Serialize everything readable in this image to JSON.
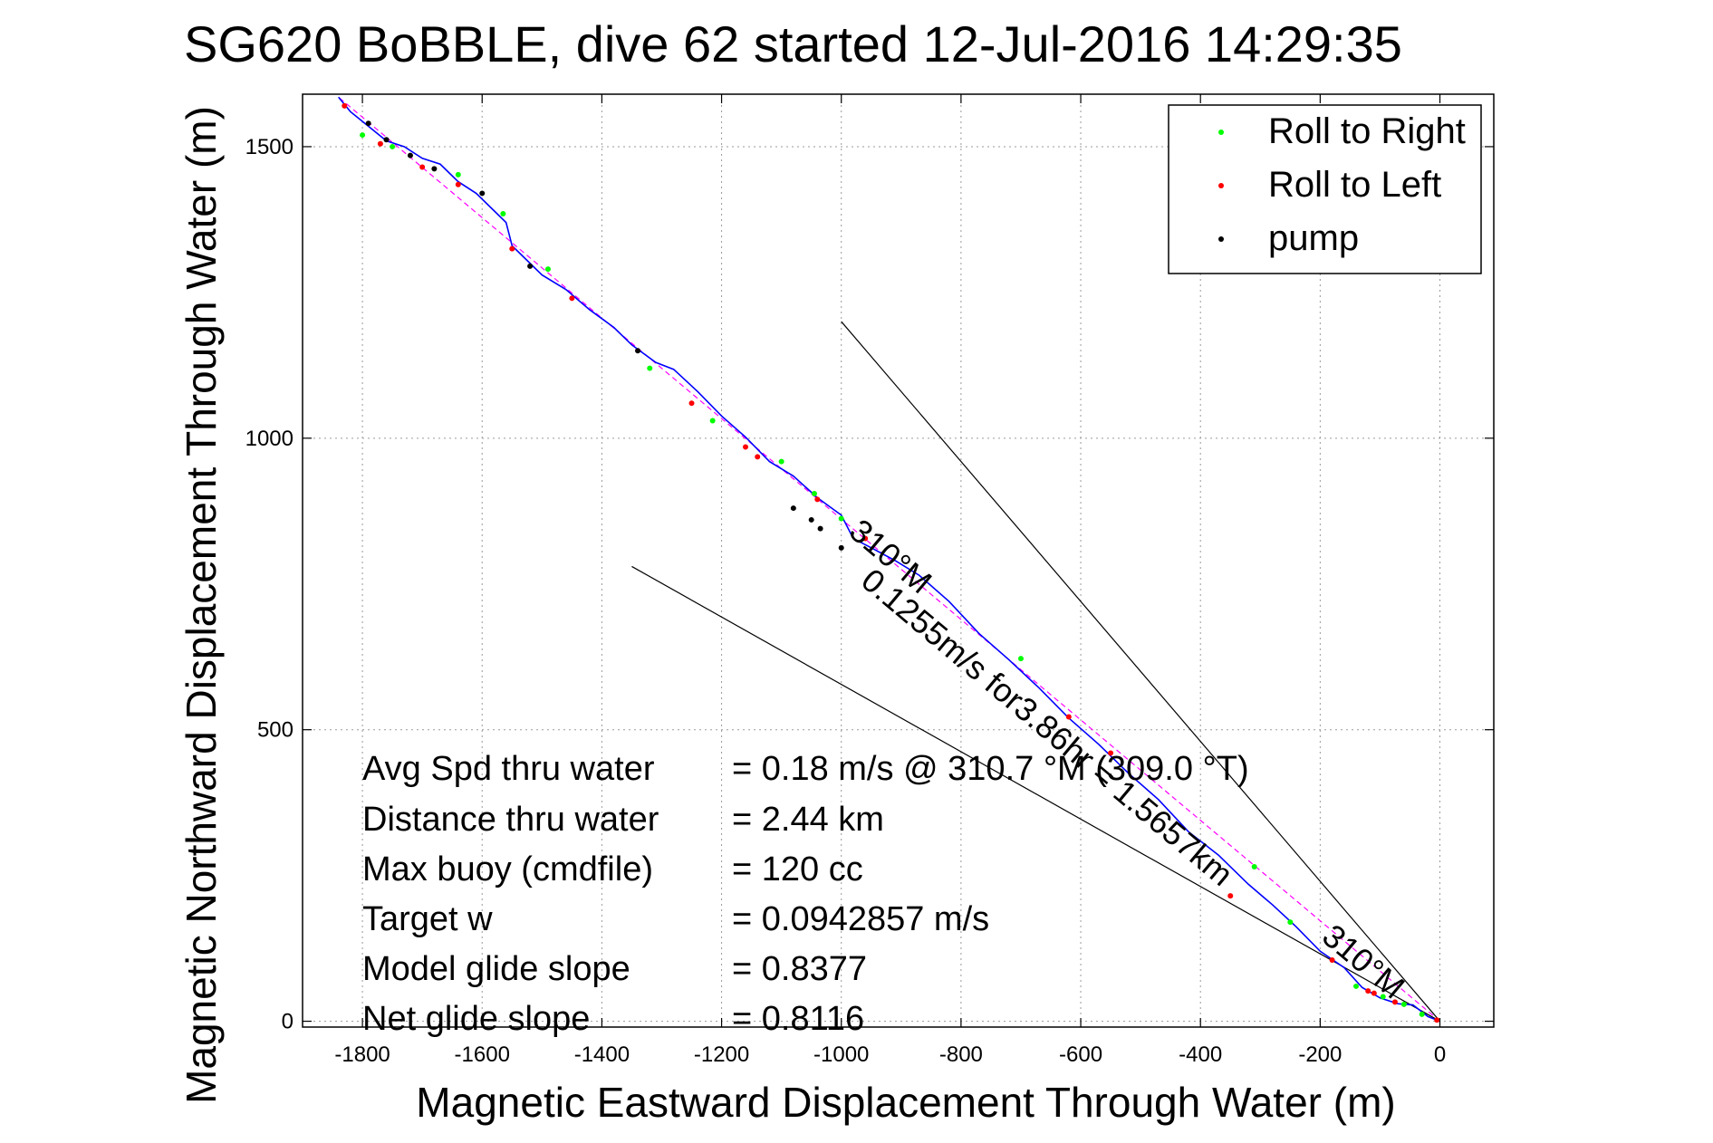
{
  "chart_data": {
    "type": "line",
    "title": "SG620 BoBBLE, dive 62 started 12-Jul-2016 14:29:35",
    "xlabel": "Magnetic Eastward Displacement Through Water (m)",
    "ylabel": "Magnetic Northward Displacement Through Water (m)",
    "xlim": [
      -1900,
      90
    ],
    "ylim": [
      -10,
      1590
    ],
    "grid": true,
    "xticks": [
      -1800,
      -1600,
      -1400,
      -1200,
      -1000,
      -800,
      -600,
      -400,
      -200,
      0
    ],
    "yticks": [
      0,
      500,
      1000,
      1500
    ],
    "track": {
      "name": "track",
      "color": "#0000ff",
      "x": [
        0,
        -20,
        -45,
        -70,
        -100,
        -130,
        -160,
        -200,
        -240,
        -280,
        -320,
        -370,
        -420,
        -470,
        -520,
        -570,
        -620,
        -670,
        -720,
        -770,
        -820,
        -870,
        -910,
        -950,
        -980,
        -1000,
        -1040,
        -1080,
        -1120,
        -1160,
        -1200,
        -1240,
        -1280,
        -1310,
        -1350,
        -1380,
        -1420,
        -1460,
        -1500,
        -1530,
        -1550,
        -1560,
        -1580,
        -1610,
        -1640,
        -1670,
        -1700,
        -1730,
        -1760,
        -1790,
        -1820,
        -1840
      ],
      "y": [
        0,
        8,
        28,
        30,
        40,
        58,
        92,
        120,
        162,
        200,
        235,
        285,
        325,
        380,
        425,
        475,
        520,
        572,
        620,
        665,
        720,
        765,
        790,
        812,
        828,
        868,
        898,
        935,
        960,
        1002,
        1038,
        1080,
        1118,
        1130,
        1160,
        1190,
        1220,
        1255,
        1280,
        1310,
        1330,
        1370,
        1390,
        1420,
        1440,
        1470,
        1480,
        1500,
        1510,
        1535,
        1560,
        1585
      ]
    },
    "series": [
      {
        "name": "Roll to Right",
        "color": "#00ff00",
        "x": [
          -30,
          -60,
          -95,
          -140,
          -250,
          -310,
          -700,
          -1000,
          -1045,
          -1100,
          -1215,
          -1320,
          -1490,
          -1565,
          -1640,
          -1750,
          -1800
        ],
        "y": [
          12,
          29,
          42,
          60,
          170,
          265,
          622,
          862,
          905,
          960,
          1030,
          1120,
          1290,
          1385,
          1452,
          1500,
          1520
        ]
      },
      {
        "name": "Roll to Left",
        "color": "#ff0000",
        "x": [
          -5,
          -75,
          -110,
          -120,
          -180,
          -350,
          -550,
          -620,
          -960,
          -1040,
          -1140,
          -1160,
          -1250,
          -1450,
          -1550,
          -1640,
          -1700,
          -1770,
          -1830
        ],
        "y": [
          2,
          33,
          48,
          52,
          105,
          215,
          460,
          522,
          828,
          895,
          968,
          985,
          1060,
          1240,
          1325,
          1435,
          1465,
          1505,
          1570
        ]
      },
      {
        "name": "pump",
        "color": "#000000",
        "x": [
          -1000,
          -1035,
          -1050,
          -1080,
          -1340,
          -1520,
          -1600,
          -1680,
          -1720,
          -1760,
          -1790
        ],
        "y": [
          812,
          845,
          860,
          880,
          1150,
          1295,
          1420,
          1462,
          1485,
          1512,
          1540
        ]
      }
    ],
    "reference_lines": [
      {
        "name": "heading-line",
        "x": [
          0,
          -1840
        ],
        "y": [
          0,
          1585
        ],
        "color": "#ff00ff"
      },
      {
        "name": "upper-bound-line",
        "x": [
          0,
          -1000
        ],
        "y": [
          0,
          1200
        ],
        "color": "#000000"
      },
      {
        "name": "lower-bound-line",
        "x": [
          0,
          -1350
        ],
        "y": [
          0,
          780
        ],
        "color": "#000000"
      }
    ],
    "annotations": [
      {
        "text": "310°M",
        "x": -990,
        "y": 835,
        "rotation": 40
      },
      {
        "text": "310°M",
        "x": -200,
        "y": 140,
        "rotation": 40
      },
      {
        "text": "0.1255m/s for3.86hr = 1.5657km",
        "x": -970,
        "y": 750,
        "rotation": 40
      }
    ],
    "legend": {
      "position": "top-right",
      "entries": [
        {
          "label": "Roll to Right",
          "color": "#00ff00"
        },
        {
          "label": "Roll to Left",
          "color": "#ff0000"
        },
        {
          "label": "pump",
          "color": "#000000"
        }
      ]
    },
    "stats": [
      {
        "label": "Avg Spd thru water",
        "value": "=  0.18 m/s @ 310.7 °M (309.0 °T)"
      },
      {
        "label": "Distance thru water",
        "value": "=  2.44 km"
      },
      {
        "label": "Max buoy (cmdfile)",
        "value": "= 120 cc"
      },
      {
        "label": "Target w",
        "value": "= 0.0942857 m/s"
      },
      {
        "label": "Model glide slope",
        "value": "= 0.8377"
      },
      {
        "label": "Net glide slope",
        "value": "= 0.8116"
      }
    ]
  }
}
